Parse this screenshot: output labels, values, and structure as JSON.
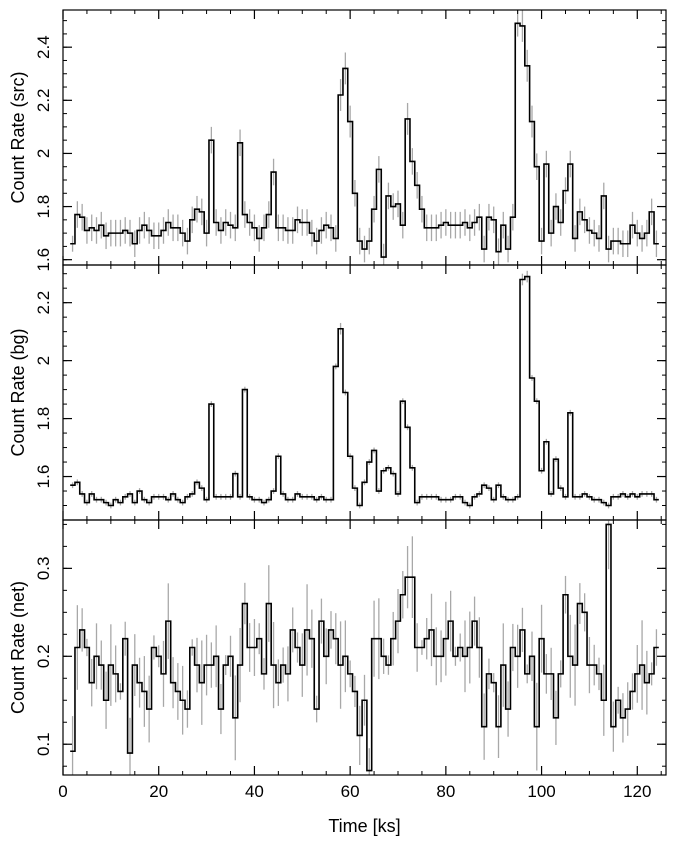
{
  "chart_data": [
    {
      "type": "line",
      "step": true,
      "ylabel": "Count Rate (src)",
      "ylim": [
        1.58,
        2.54
      ],
      "yticks": [
        1.6,
        1.8,
        2,
        2.2,
        2.4
      ],
      "ytick_labels": [
        "1.6",
        "1.8",
        "2",
        "2.2",
        "2.4"
      ],
      "xlim": [
        0,
        126
      ],
      "error_bars": true,
      "series": [
        {
          "x": [
            2,
            3,
            4,
            5,
            6,
            7,
            8,
            9,
            10,
            11,
            12,
            13,
            14,
            15,
            16,
            17,
            18,
            19,
            20,
            21,
            22,
            23,
            24,
            25,
            26,
            27,
            28,
            29,
            30,
            31,
            32,
            33,
            34,
            35,
            36,
            37,
            38,
            39,
            40,
            41,
            42,
            43,
            44,
            45,
            46,
            47,
            48,
            49,
            50,
            51,
            52,
            53,
            54,
            55,
            56,
            57,
            58,
            59,
            60,
            61,
            62,
            63,
            64,
            65,
            66,
            67,
            68,
            69,
            70,
            71,
            72,
            73,
            74,
            75,
            76,
            77,
            78,
            79,
            80,
            81,
            82,
            83,
            84,
            85,
            86,
            87,
            88,
            89,
            90,
            91,
            92,
            93,
            94,
            95,
            96,
            97,
            98,
            99,
            100,
            101,
            102,
            103,
            104,
            105,
            106,
            107,
            108,
            109,
            110,
            111,
            112,
            113,
            114,
            115,
            116,
            117,
            118,
            119,
            120,
            121,
            122,
            123,
            124
          ],
          "values": [
            1.66,
            1.77,
            1.76,
            1.71,
            1.72,
            1.71,
            1.73,
            1.69,
            1.7,
            1.7,
            1.7,
            1.71,
            1.7,
            1.66,
            1.71,
            1.73,
            1.71,
            1.69,
            1.69,
            1.71,
            1.74,
            1.72,
            1.72,
            1.7,
            1.67,
            1.75,
            1.79,
            1.78,
            1.7,
            2.05,
            1.74,
            1.71,
            1.74,
            1.73,
            1.72,
            2.04,
            1.77,
            1.74,
            1.72,
            1.68,
            1.72,
            1.77,
            1.93,
            1.72,
            1.72,
            1.71,
            1.71,
            1.75,
            1.74,
            1.74,
            1.7,
            1.67,
            1.71,
            1.73,
            1.72,
            1.68,
            2.22,
            2.32,
            2.12,
            1.85,
            1.67,
            1.64,
            1.67,
            1.79,
            1.94,
            1.61,
            1.84,
            1.8,
            1.81,
            1.73,
            2.13,
            1.97,
            1.88,
            1.79,
            1.72,
            1.72,
            1.72,
            1.73,
            1.74,
            1.73,
            1.73,
            1.73,
            1.74,
            1.72,
            1.74,
            1.76,
            1.64,
            1.76,
            1.75,
            1.63,
            1.73,
            1.64,
            1.76,
            2.49,
            2.48,
            2.33,
            2.12,
            1.95,
            1.67,
            1.96,
            1.7,
            1.8,
            1.74,
            1.86,
            1.96,
            1.68,
            1.78,
            1.75,
            1.71,
            1.7,
            1.68,
            1.84,
            1.64,
            1.67,
            1.67,
            1.66,
            1.66,
            1.73,
            1.7,
            1.68,
            1.7,
            1.78,
            1.66
          ],
          "errors": [
            0.03,
            0.05,
            0.05,
            0.05,
            0.05,
            0.05,
            0.05,
            0.05,
            0.05,
            0.05,
            0.05,
            0.05,
            0.05,
            0.05,
            0.05,
            0.05,
            0.05,
            0.05,
            0.05,
            0.05,
            0.05,
            0.05,
            0.05,
            0.05,
            0.05,
            0.05,
            0.05,
            0.05,
            0.05,
            0.05,
            0.05,
            0.05,
            0.05,
            0.05,
            0.05,
            0.05,
            0.05,
            0.05,
            0.05,
            0.05,
            0.05,
            0.05,
            0.05,
            0.05,
            0.05,
            0.05,
            0.05,
            0.05,
            0.05,
            0.05,
            0.05,
            0.05,
            0.05,
            0.05,
            0.05,
            0.05,
            0.06,
            0.06,
            0.06,
            0.05,
            0.05,
            0.05,
            0.05,
            0.05,
            0.05,
            0.05,
            0.05,
            0.05,
            0.05,
            0.05,
            0.06,
            0.05,
            0.05,
            0.05,
            0.05,
            0.05,
            0.05,
            0.05,
            0.05,
            0.05,
            0.05,
            0.05,
            0.05,
            0.05,
            0.05,
            0.05,
            0.05,
            0.05,
            0.05,
            0.05,
            0.05,
            0.05,
            0.05,
            0.05,
            0.06,
            0.06,
            0.06,
            0.05,
            0.05,
            0.05,
            0.05,
            0.05,
            0.05,
            0.05,
            0.05,
            0.05,
            0.05,
            0.05,
            0.05,
            0.05,
            0.05,
            0.05,
            0.05,
            0.05,
            0.05,
            0.05,
            0.05,
            0.05,
            0.05,
            0.05,
            0.05,
            0.05,
            0.05
          ]
        }
      ]
    },
    {
      "type": "line",
      "step": true,
      "ylabel": "Count Rate (bg)",
      "ylim": [
        1.45,
        2.33
      ],
      "yticks": [
        1.6,
        1.8,
        2,
        2.2
      ],
      "ytick_labels": [
        "1.6",
        "1.8",
        "2",
        "2.2"
      ],
      "xlim": [
        0,
        126
      ],
      "error_bars": true,
      "series": [
        {
          "x": [
            2,
            3,
            4,
            5,
            6,
            7,
            8,
            9,
            10,
            11,
            12,
            13,
            14,
            15,
            16,
            17,
            18,
            19,
            20,
            21,
            22,
            23,
            24,
            25,
            26,
            27,
            28,
            29,
            30,
            31,
            32,
            33,
            34,
            35,
            36,
            37,
            38,
            39,
            40,
            41,
            42,
            43,
            44,
            45,
            46,
            47,
            48,
            49,
            50,
            51,
            52,
            53,
            54,
            55,
            56,
            57,
            58,
            59,
            60,
            61,
            62,
            63,
            64,
            65,
            66,
            67,
            68,
            69,
            70,
            71,
            72,
            73,
            74,
            75,
            76,
            77,
            78,
            79,
            80,
            81,
            82,
            83,
            84,
            85,
            86,
            87,
            88,
            89,
            90,
            91,
            92,
            93,
            94,
            95,
            96,
            97,
            98,
            99,
            100,
            101,
            102,
            103,
            104,
            105,
            106,
            107,
            108,
            109,
            110,
            111,
            112,
            113,
            114,
            115,
            116,
            117,
            118,
            119,
            120,
            121,
            122,
            123,
            124
          ],
          "values": [
            1.57,
            1.58,
            1.54,
            1.51,
            1.54,
            1.52,
            1.52,
            1.51,
            1.5,
            1.52,
            1.51,
            1.53,
            1.54,
            1.51,
            1.55,
            1.52,
            1.51,
            1.53,
            1.53,
            1.53,
            1.52,
            1.54,
            1.52,
            1.51,
            1.53,
            1.54,
            1.58,
            1.56,
            1.52,
            1.85,
            1.53,
            1.53,
            1.53,
            1.53,
            1.61,
            1.53,
            1.9,
            1.53,
            1.52,
            1.52,
            1.51,
            1.52,
            1.55,
            1.67,
            1.54,
            1.52,
            1.52,
            1.54,
            1.53,
            1.53,
            1.53,
            1.52,
            1.53,
            1.52,
            1.52,
            1.98,
            2.11,
            1.89,
            1.67,
            1.56,
            1.5,
            1.58,
            1.65,
            1.69,
            1.55,
            1.62,
            1.63,
            1.61,
            1.54,
            1.86,
            1.77,
            1.63,
            1.51,
            1.53,
            1.53,
            1.53,
            1.53,
            1.52,
            1.52,
            1.52,
            1.53,
            1.53,
            1.51,
            1.5,
            1.53,
            1.54,
            1.57,
            1.56,
            1.52,
            1.57,
            1.53,
            1.52,
            1.52,
            1.53,
            2.28,
            2.29,
            1.94,
            1.86,
            1.62,
            1.72,
            1.54,
            1.66,
            1.56,
            1.53,
            1.82,
            1.53,
            1.53,
            1.54,
            1.53,
            1.52,
            1.52,
            1.51,
            1.5,
            1.53,
            1.53,
            1.54,
            1.53,
            1.54,
            1.53,
            1.54,
            1.54,
            1.54,
            1.52
          ],
          "errors": [
            0.01,
            0.01,
            0.01,
            0.01,
            0.01,
            0.01,
            0.01,
            0.01,
            0.01,
            0.01,
            0.01,
            0.01,
            0.01,
            0.01,
            0.01,
            0.01,
            0.01,
            0.01,
            0.01,
            0.01,
            0.01,
            0.01,
            0.01,
            0.01,
            0.01,
            0.01,
            0.01,
            0.01,
            0.01,
            0.01,
            0.01,
            0.01,
            0.01,
            0.01,
            0.01,
            0.01,
            0.01,
            0.01,
            0.01,
            0.01,
            0.01,
            0.01,
            0.01,
            0.01,
            0.01,
            0.01,
            0.01,
            0.01,
            0.01,
            0.01,
            0.01,
            0.01,
            0.01,
            0.01,
            0.01,
            0.01,
            0.02,
            0.01,
            0.01,
            0.01,
            0.01,
            0.01,
            0.01,
            0.01,
            0.01,
            0.01,
            0.01,
            0.01,
            0.01,
            0.01,
            0.01,
            0.01,
            0.01,
            0.01,
            0.01,
            0.01,
            0.01,
            0.01,
            0.01,
            0.01,
            0.01,
            0.01,
            0.01,
            0.01,
            0.01,
            0.01,
            0.01,
            0.01,
            0.01,
            0.01,
            0.01,
            0.01,
            0.01,
            0.01,
            0.02,
            0.02,
            0.01,
            0.01,
            0.01,
            0.01,
            0.01,
            0.01,
            0.01,
            0.01,
            0.01,
            0.01,
            0.01,
            0.01,
            0.01,
            0.01,
            0.01,
            0.01,
            0.01,
            0.01,
            0.01,
            0.01,
            0.01,
            0.01,
            0.01,
            0.01,
            0.01,
            0.01,
            0.01
          ]
        }
      ]
    },
    {
      "type": "line",
      "step": true,
      "ylabel": "Count Rate (net)",
      "xlabel": "Time [ks]",
      "ylim": [
        0.065,
        0.355
      ],
      "yticks": [
        0.1,
        0.2,
        0.3
      ],
      "ytick_labels": [
        "0.1",
        "0.2",
        "0.3"
      ],
      "xlim": [
        0,
        126
      ],
      "xticks": [
        0,
        20,
        40,
        60,
        80,
        100,
        120
      ],
      "xtick_labels": [
        "0",
        "20",
        "40",
        "60",
        "80",
        "100",
        "120"
      ],
      "error_bars": true,
      "series": [
        {
          "x": [
            2,
            3,
            4,
            5,
            6,
            7,
            8,
            9,
            10,
            11,
            12,
            13,
            14,
            15,
            16,
            17,
            18,
            19,
            20,
            21,
            22,
            23,
            24,
            25,
            26,
            27,
            28,
            29,
            30,
            31,
            32,
            33,
            34,
            35,
            36,
            37,
            38,
            39,
            40,
            41,
            42,
            43,
            44,
            45,
            46,
            47,
            48,
            49,
            50,
            51,
            52,
            53,
            54,
            55,
            56,
            57,
            58,
            59,
            60,
            61,
            62,
            63,
            64,
            65,
            66,
            67,
            68,
            69,
            70,
            71,
            72,
            73,
            74,
            75,
            76,
            77,
            78,
            79,
            80,
            81,
            82,
            83,
            84,
            85,
            86,
            87,
            88,
            89,
            90,
            91,
            92,
            93,
            94,
            95,
            96,
            97,
            98,
            99,
            100,
            101,
            102,
            103,
            104,
            105,
            106,
            107,
            108,
            109,
            110,
            111,
            112,
            113,
            114,
            115,
            116,
            117,
            118,
            119,
            120,
            121,
            122,
            123,
            124
          ],
          "values": [
            0.092,
            0.21,
            0.23,
            0.21,
            0.17,
            0.2,
            0.19,
            0.15,
            0.19,
            0.18,
            0.16,
            0.22,
            0.09,
            0.19,
            0.17,
            0.16,
            0.14,
            0.21,
            0.2,
            0.18,
            0.24,
            0.17,
            0.16,
            0.15,
            0.14,
            0.21,
            0.19,
            0.17,
            0.19,
            0.19,
            0.2,
            0.14,
            0.19,
            0.2,
            0.13,
            0.19,
            0.26,
            0.21,
            0.21,
            0.22,
            0.18,
            0.26,
            0.19,
            0.17,
            0.19,
            0.18,
            0.23,
            0.21,
            0.19,
            0.23,
            0.22,
            0.14,
            0.24,
            0.2,
            0.23,
            0.22,
            0.19,
            0.2,
            0.18,
            0.16,
            0.11,
            0.15,
            0.07,
            0.22,
            0.22,
            0.2,
            0.19,
            0.22,
            0.24,
            0.27,
            0.29,
            0.29,
            0.21,
            0.21,
            0.22,
            0.23,
            0.2,
            0.2,
            0.22,
            0.24,
            0.2,
            0.21,
            0.2,
            0.21,
            0.24,
            0.21,
            0.12,
            0.18,
            0.17,
            0.12,
            0.19,
            0.14,
            0.21,
            0.2,
            0.23,
            0.18,
            0.2,
            0.12,
            0.22,
            0.18,
            0.18,
            0.13,
            0.18,
            0.27,
            0.2,
            0.19,
            0.26,
            0.25,
            0.19,
            0.19,
            0.18,
            0.15,
            0.35,
            0.12,
            0.15,
            0.13,
            0.14,
            0.16,
            0.18,
            0.19,
            0.17,
            0.18,
            0.21
          ]
        }
      ]
    }
  ]
}
